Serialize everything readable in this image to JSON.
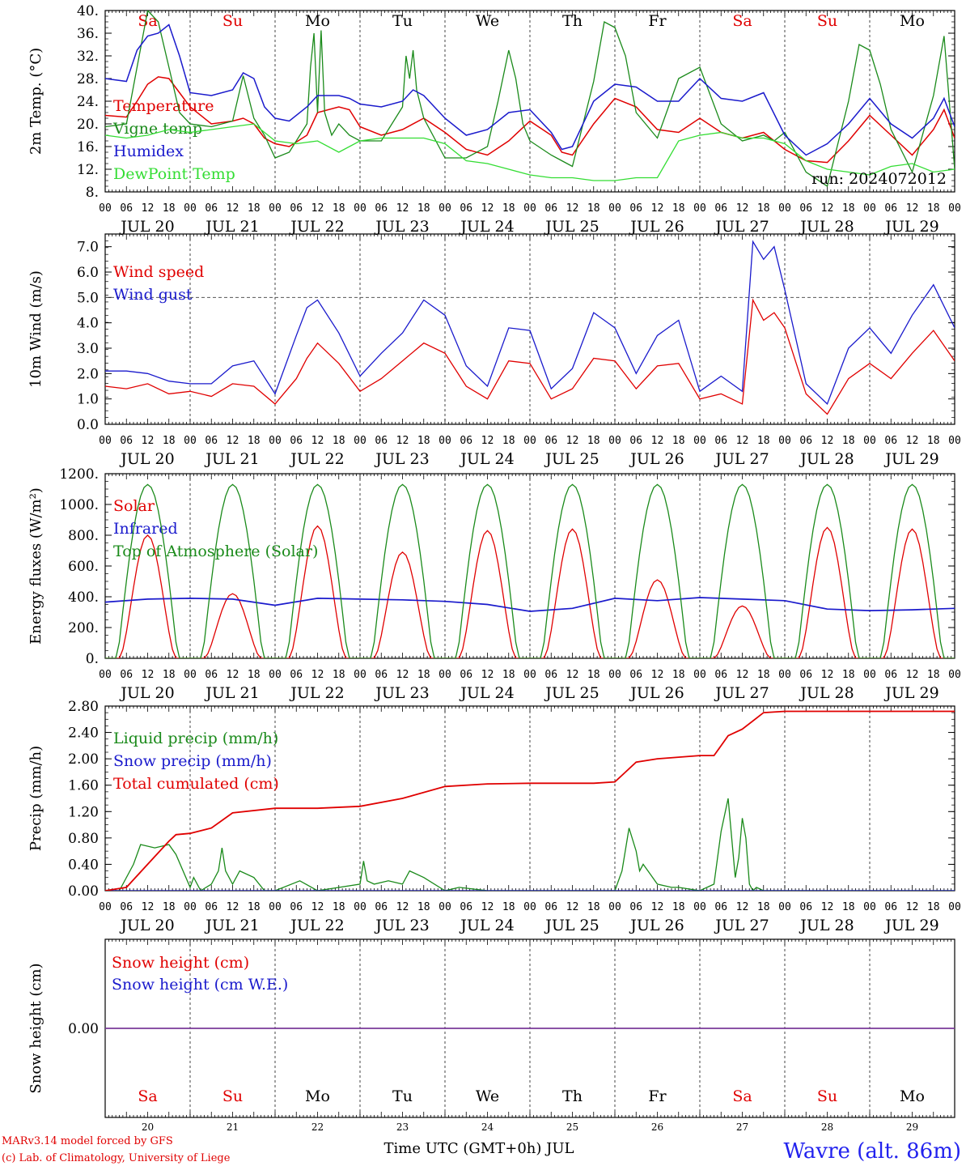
{
  "page": {
    "credit_line1": "MARv3.14 model forced by GFS",
    "credit_line2": "(c) Lab. of Climatology, University of Liege",
    "xaxis_title": "Time UTC (GMT+0h) JUL",
    "station": "Wavre (alt. 86m)",
    "run": "run: 2024072012"
  },
  "colors": {
    "red": "#e00000",
    "green": "#1a8a1a",
    "blue": "#1a1acc",
    "lightgreen": "#33dd33",
    "purple": "#7a3a9a",
    "grid": "#444444",
    "station": "#2222ee"
  },
  "days": [
    {
      "dow": "Sa",
      "date": "JUL 20",
      "num": "20",
      "weekend": true
    },
    {
      "dow": "Su",
      "date": "JUL 21",
      "num": "21",
      "weekend": true
    },
    {
      "dow": "Mo",
      "date": "JUL 22",
      "num": "22",
      "weekend": false
    },
    {
      "dow": "Tu",
      "date": "JUL 23",
      "num": "23",
      "weekend": false
    },
    {
      "dow": "We",
      "date": "JUL 24",
      "num": "24",
      "weekend": false
    },
    {
      "dow": "Th",
      "date": "JUL 25",
      "num": "25",
      "weekend": false
    },
    {
      "dow": "Fr",
      "date": "JUL 26",
      "num": "26",
      "weekend": false
    },
    {
      "dow": "Sa",
      "date": "JUL 27",
      "num": "27",
      "weekend": true
    },
    {
      "dow": "Su",
      "date": "JUL 28",
      "num": "28",
      "weekend": true
    },
    {
      "dow": "Mo",
      "date": "JUL 29",
      "num": "29",
      "weekend": false
    }
  ],
  "hour_ticks": [
    "00",
    "06",
    "12",
    "18"
  ],
  "chart_data": [
    {
      "id": "temp",
      "type": "line",
      "ylabel": "2m Temp. (°C)",
      "ylim": [
        8,
        40
      ],
      "yticks": [
        "8.",
        "12.",
        "16.",
        "20.",
        "24.",
        "28.",
        "32.",
        "36.",
        "40."
      ],
      "x_unit": "hours since JUL 20 00 UTC",
      "series": [
        {
          "name": "Temperature",
          "color": "red",
          "x": [
            0,
            6,
            9,
            12,
            15,
            18,
            21,
            24,
            30,
            36,
            39,
            42,
            45,
            48,
            52,
            57,
            60,
            66,
            69,
            72,
            78,
            84,
            90,
            96,
            102,
            108,
            114,
            120,
            126,
            129,
            132,
            138,
            144,
            150,
            156,
            162,
            168,
            174,
            180,
            186,
            192,
            198,
            204,
            210,
            216,
            222,
            228,
            234,
            237,
            240
          ],
          "y": [
            21.5,
            21.2,
            24,
            27,
            28.3,
            28,
            25.5,
            23,
            20,
            20.5,
            21,
            20,
            17.5,
            16.5,
            16,
            18,
            22,
            23,
            22.5,
            19.5,
            18,
            19,
            21,
            18.5,
            15.5,
            14.5,
            17,
            20.5,
            18,
            15,
            14.5,
            20,
            24.5,
            23,
            19,
            18.5,
            21,
            18.5,
            17.5,
            18.5,
            15.5,
            13.5,
            13.2,
            17,
            21.5,
            18,
            14.5,
            19,
            22.5,
            17.5
          ]
        },
        {
          "name": "Vigne temp",
          "color": "green",
          "x": [
            0,
            6,
            9,
            12,
            15,
            18,
            21,
            24,
            30,
            36,
            39,
            42,
            45,
            48,
            52,
            57,
            58,
            59,
            60,
            61,
            62,
            63,
            64,
            66,
            69,
            72,
            78,
            84,
            85,
            86,
            87,
            88,
            90,
            96,
            102,
            108,
            111,
            114,
            116,
            118,
            120,
            126,
            129,
            132,
            138,
            141,
            144,
            147,
            150,
            156,
            162,
            168,
            174,
            180,
            186,
            189,
            192,
            198,
            204,
            210,
            213,
            216,
            219,
            222,
            228,
            234,
            237,
            240
          ],
          "y": [
            19.5,
            20,
            30,
            40,
            38,
            30,
            22,
            20,
            19.5,
            20.5,
            28.5,
            21,
            18,
            14,
            15,
            20,
            30,
            36,
            22,
            36.5,
            22,
            20,
            18,
            20,
            18,
            17,
            17,
            23,
            32,
            28,
            33,
            26,
            21,
            14,
            14,
            16,
            24,
            33,
            28,
            20,
            17,
            14.5,
            13.5,
            12.5,
            27.5,
            38,
            37,
            32,
            22,
            17.5,
            28,
            30,
            20,
            17,
            18,
            17,
            18.5,
            11.5,
            9,
            24,
            34,
            33,
            27,
            19,
            11.5,
            25,
            35.5,
            12
          ]
        },
        {
          "name": "Humidex",
          "color": "blue",
          "x": [
            0,
            6,
            9,
            12,
            15,
            18,
            21,
            24,
            30,
            36,
            39,
            42,
            45,
            48,
            52,
            57,
            60,
            66,
            69,
            72,
            78,
            84,
            87,
            90,
            96,
            102,
            108,
            114,
            120,
            126,
            129,
            132,
            138,
            144,
            150,
            156,
            162,
            168,
            174,
            180,
            186,
            192,
            198,
            204,
            210,
            216,
            222,
            228,
            234,
            237,
            240
          ],
          "y": [
            28,
            27.5,
            33,
            35.5,
            36,
            37.5,
            32,
            25.5,
            25,
            26,
            29,
            28,
            23,
            21,
            20.5,
            23,
            25,
            25,
            24.5,
            23.5,
            23,
            24,
            26,
            25,
            21,
            18,
            19,
            22,
            22.5,
            18.5,
            15.5,
            16,
            24,
            27,
            26.5,
            24,
            24,
            28,
            24.5,
            24,
            25.5,
            18,
            14.5,
            16.5,
            20,
            24.5,
            20,
            17.5,
            21,
            24.5,
            19.5
          ]
        },
        {
          "name": "DewPoint Temp",
          "color": "lightgreen",
          "x": [
            0,
            6,
            12,
            18,
            24,
            30,
            36,
            42,
            48,
            54,
            60,
            66,
            72,
            78,
            84,
            90,
            96,
            102,
            108,
            114,
            120,
            126,
            132,
            138,
            144,
            150,
            156,
            162,
            168,
            174,
            180,
            186,
            192,
            198,
            204,
            210,
            216,
            222,
            228,
            234,
            240
          ],
          "y": [
            18,
            17.5,
            18,
            19,
            18.5,
            19,
            19.5,
            20,
            17,
            16.5,
            17,
            15,
            17,
            17.5,
            17.5,
            17.5,
            16.5,
            13.5,
            13,
            12,
            11,
            10.5,
            10.5,
            10,
            10,
            10.5,
            10.5,
            17,
            18,
            18.5,
            17.5,
            17.5,
            16.5,
            13.5,
            12,
            11.5,
            11,
            12.5,
            13,
            11.5,
            12
          ]
        }
      ]
    },
    {
      "id": "wind",
      "type": "line",
      "ylabel": "10m Wind (m/s)",
      "ylim": [
        0,
        7.5
      ],
      "yticks": [
        "0.0",
        "1.0",
        "2.0",
        "3.0",
        "4.0",
        "5.0",
        "6.0",
        "7.0"
      ],
      "x_unit": "hours since JUL 20 00 UTC",
      "series": [
        {
          "name": "Wind speed",
          "color": "red",
          "x": [
            0,
            6,
            12,
            18,
            24,
            30,
            36,
            42,
            48,
            54,
            57,
            60,
            66,
            72,
            78,
            84,
            90,
            96,
            102,
            108,
            114,
            120,
            126,
            132,
            138,
            144,
            150,
            156,
            162,
            168,
            174,
            180,
            183,
            186,
            189,
            192,
            198,
            204,
            210,
            216,
            222,
            228,
            234,
            240
          ],
          "y": [
            1.5,
            1.4,
            1.6,
            1.2,
            1.3,
            1.1,
            1.6,
            1.5,
            0.8,
            1.8,
            2.6,
            3.2,
            2.4,
            1.3,
            1.8,
            2.5,
            3.2,
            2.8,
            1.5,
            1.0,
            2.5,
            2.4,
            1.0,
            1.4,
            2.6,
            2.5,
            1.4,
            2.3,
            2.4,
            1.0,
            1.2,
            0.8,
            4.9,
            4.1,
            4.4,
            3.8,
            1.2,
            0.4,
            1.8,
            2.4,
            1.8,
            2.8,
            3.7,
            2.5
          ]
        },
        {
          "name": "Wind gust",
          "color": "blue",
          "x": [
            0,
            6,
            12,
            18,
            24,
            30,
            36,
            42,
            48,
            54,
            57,
            60,
            66,
            72,
            78,
            84,
            90,
            96,
            102,
            108,
            114,
            120,
            126,
            132,
            138,
            144,
            150,
            156,
            162,
            168,
            174,
            180,
            183,
            186,
            189,
            192,
            198,
            204,
            210,
            216,
            222,
            228,
            234,
            240
          ],
          "y": [
            2.1,
            2.1,
            2.0,
            1.7,
            1.6,
            1.6,
            2.3,
            2.5,
            1.2,
            3.5,
            4.6,
            4.9,
            3.6,
            1.9,
            2.8,
            3.6,
            4.9,
            4.3,
            2.3,
            1.5,
            3.8,
            3.7,
            1.4,
            2.2,
            4.4,
            3.8,
            2.0,
            3.5,
            4.1,
            1.3,
            1.9,
            1.3,
            7.2,
            6.5,
            7.0,
            5.3,
            1.6,
            0.8,
            3.0,
            3.8,
            2.8,
            4.3,
            5.5,
            3.8
          ]
        }
      ]
    },
    {
      "id": "energy",
      "type": "line",
      "ylabel": "Energy fluxes (W/m²)",
      "ylim": [
        0,
        1200
      ],
      "yticks": [
        "0.",
        "200.",
        "400.",
        "600.",
        "800.",
        "1000.",
        "1200."
      ],
      "x_unit": "hours since JUL 20 00 UTC",
      "series": [
        {
          "name": "Solar",
          "color": "red",
          "daily_peaks": [
            800,
            420,
            860,
            690,
            830,
            840,
            510,
            340,
            850,
            840
          ]
        },
        {
          "name": "Infrared",
          "color": "blue",
          "x": [
            0,
            12,
            24,
            36,
            48,
            60,
            72,
            84,
            96,
            108,
            120,
            132,
            144,
            156,
            168,
            180,
            192,
            204,
            216,
            228,
            240
          ],
          "y": [
            365,
            385,
            390,
            385,
            345,
            390,
            385,
            380,
            370,
            350,
            305,
            325,
            390,
            375,
            395,
            385,
            375,
            320,
            310,
            315,
            325
          ]
        },
        {
          "name": "Top of Atmosphere (Solar)",
          "color": "green",
          "daily_peak": 1130
        }
      ]
    },
    {
      "id": "precip",
      "type": "line",
      "ylabel": "Precip (mm/h)",
      "ylim": [
        0,
        2.8
      ],
      "yticks": [
        "0.00",
        "0.40",
        "0.80",
        "1.20",
        "1.60",
        "2.00",
        "2.40",
        "2.80"
      ],
      "x_unit": "hours since JUL 20 00 UTC",
      "series": [
        {
          "name": "Liquid precip (mm/h)",
          "color": "green",
          "x": [
            0,
            4,
            8,
            10,
            14,
            18,
            20,
            24,
            25,
            27,
            30,
            32,
            33,
            34,
            36,
            38,
            42,
            45,
            48,
            55,
            60,
            72,
            73,
            74,
            76,
            80,
            84,
            86,
            90,
            96,
            100,
            108,
            144,
            146,
            148,
            150,
            151,
            152,
            154,
            156,
            160,
            162,
            168,
            172,
            174,
            176,
            177,
            178,
            179,
            180,
            181,
            182,
            183,
            184,
            186,
            188,
            240
          ],
          "y": [
            0,
            0,
            0.4,
            0.7,
            0.65,
            0.7,
            0.55,
            0.05,
            0.2,
            0,
            0.1,
            0.3,
            0.65,
            0.3,
            0.1,
            0.3,
            0.2,
            0,
            0,
            0.15,
            0,
            0.1,
            0.45,
            0.15,
            0.1,
            0.15,
            0.1,
            0.3,
            0.2,
            0,
            0.05,
            0,
            0,
            0.3,
            0.95,
            0.6,
            0.3,
            0.4,
            0.25,
            0.1,
            0.05,
            0.05,
            0,
            0.1,
            0.9,
            1.4,
            0.8,
            0.2,
            0.5,
            1.1,
            0.8,
            0.1,
            0,
            0.05,
            0,
            0,
            0
          ]
        },
        {
          "name": "Snow precip (mm/h)",
          "color": "blue",
          "x": [
            0,
            240
          ],
          "y": [
            0,
            0
          ]
        },
        {
          "name": "Total cumulated (cm)",
          "color": "red",
          "x": [
            0,
            6,
            12,
            18,
            20,
            24,
            30,
            36,
            48,
            60,
            72,
            84,
            96,
            108,
            120,
            138,
            144,
            146,
            150,
            156,
            168,
            172,
            174,
            176,
            180,
            186,
            192,
            204,
            216,
            228,
            240
          ],
          "y": [
            0,
            0.05,
            0.4,
            0.75,
            0.85,
            0.87,
            0.95,
            1.18,
            1.25,
            1.25,
            1.28,
            1.4,
            1.58,
            1.62,
            1.63,
            1.63,
            1.65,
            1.75,
            1.95,
            2.0,
            2.05,
            2.05,
            2.2,
            2.35,
            2.45,
            2.7,
            2.72,
            2.72,
            2.72,
            2.72,
            2.72
          ]
        }
      ]
    },
    {
      "id": "snow",
      "type": "line",
      "ylabel": "Snow height (cm)",
      "ylim": [
        -1,
        1
      ],
      "yticks": [
        "0.00"
      ],
      "x_unit": "hours since JUL 20 00 UTC",
      "series": [
        {
          "name": "Snow height (cm)",
          "color": "red",
          "x": [
            0,
            240
          ],
          "y": [
            0,
            0
          ]
        },
        {
          "name": "Snow height (cm W.E.)",
          "color": "blue",
          "x": [
            0,
            240
          ],
          "y": [
            0,
            0
          ]
        }
      ]
    }
  ]
}
